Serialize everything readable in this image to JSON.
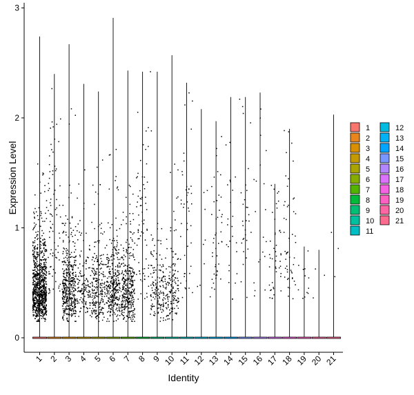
{
  "chart_data": {
    "type": "violin",
    "xlabel": "Identity",
    "ylabel": "Expression Level",
    "ylim": [
      -0.12,
      3.02
    ],
    "yticks": [
      0,
      1,
      2,
      3
    ],
    "categories": [
      "1",
      "2",
      "3",
      "4",
      "5",
      "6",
      "7",
      "8",
      "9",
      "10",
      "11",
      "12",
      "13",
      "14",
      "15",
      "16",
      "17",
      "18",
      "19",
      "20",
      "21"
    ],
    "fill_colors": [
      "#F8766D",
      "#E8851E",
      "#D89000",
      "#C49A00",
      "#A9A400",
      "#86AC00",
      "#53B400",
      "#00BA38",
      "#00BF74",
      "#00C19F",
      "#00BFC4",
      "#00BBE0",
      "#00B2F3",
      "#00A5FF",
      "#7997FF",
      "#B385FF",
      "#DB72FB",
      "#F464E2",
      "#FF61C3",
      "#FF67A4",
      "#FF6C90"
    ],
    "max_values": [
      2.74,
      2.4,
      2.67,
      2.31,
      2.24,
      2.91,
      2.43,
      2.42,
      2.42,
      2.57,
      2.32,
      2.08,
      1.97,
      2.19,
      2.19,
      2.23,
      1.4,
      1.9,
      0.83,
      0.8,
      2.03
    ],
    "expressing_cells_approx": [
      900,
      80,
      420,
      140,
      230,
      320,
      330,
      70,
      150,
      150,
      45,
      8,
      45,
      25,
      30,
      20,
      45,
      50,
      12,
      3,
      3
    ],
    "legend": {
      "position": "right",
      "columns": 2,
      "labels": [
        "1",
        "2",
        "3",
        "4",
        "5",
        "6",
        "7",
        "8",
        "9",
        "10",
        "11",
        "12",
        "13",
        "14",
        "15",
        "16",
        "17",
        "18",
        "19",
        "20",
        "21"
      ]
    }
  }
}
